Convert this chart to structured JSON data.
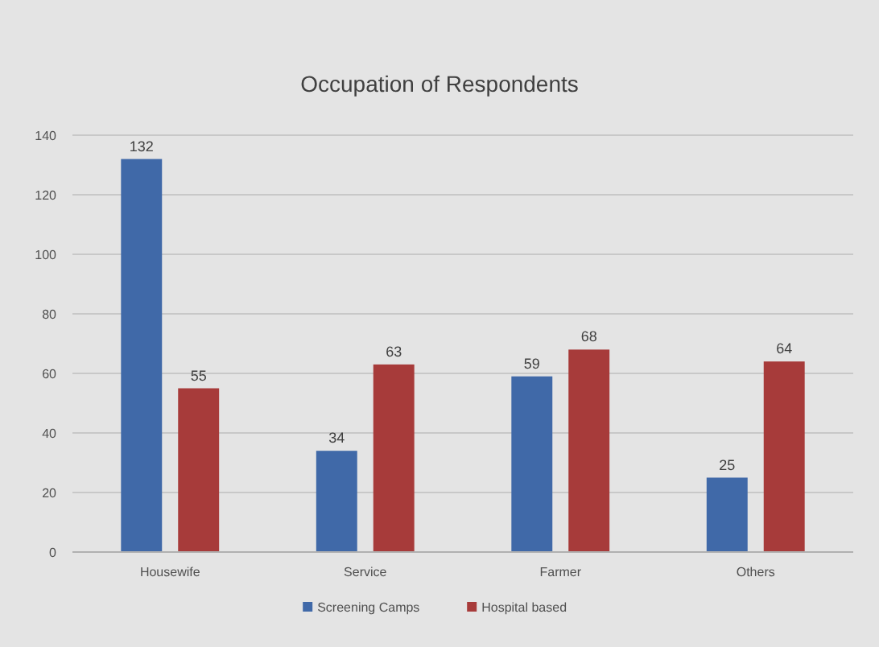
{
  "chart_data": {
    "type": "bar",
    "title": "Occupation of Respondents",
    "categories": [
      "Housewife",
      "Service",
      "Farmer",
      "Others"
    ],
    "series": [
      {
        "name": "Screening Camps",
        "color": "#4069a8",
        "values": [
          132,
          34,
          59,
          25
        ]
      },
      {
        "name": "Hospital based",
        "color": "#a73b3a",
        "values": [
          55,
          63,
          68,
          64
        ]
      }
    ],
    "ylim": [
      0,
      140
    ],
    "yticks": [
      0,
      20,
      40,
      60,
      80,
      100,
      120,
      140
    ],
    "grid": "y",
    "legend": "bottom",
    "data_labels": true
  }
}
